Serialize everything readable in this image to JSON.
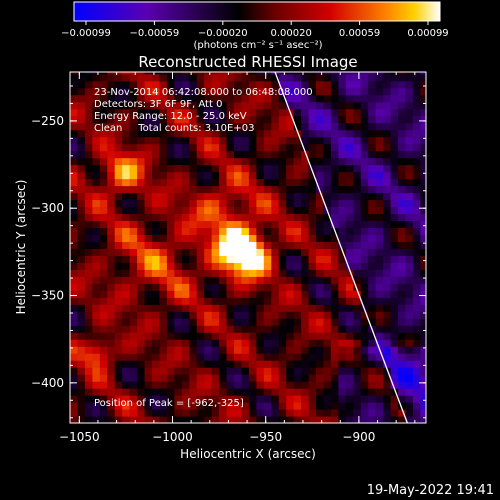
{
  "chart_data": {
    "type": "heatmap",
    "title": "Reconstructed RHESSI Image",
    "xlabel": "Heliocentric X (arcsec)",
    "ylabel": "Heliocentric Y (arcsec)",
    "xlim": [
      -1055,
      -864
    ],
    "ylim": [
      -423,
      -222
    ],
    "x_ticks": [
      -1050,
      -1000,
      -950,
      -900
    ],
    "x_tick_labels": [
      "−1050",
      "−1000",
      "−950",
      "−900"
    ],
    "y_ticks": [
      -250,
      -300,
      -350,
      -400
    ],
    "y_tick_labels": [
      "−250",
      "−300",
      "−350",
      "−400"
    ],
    "colorbar": {
      "min": -0.00099,
      "max": 0.00099,
      "tick_labels": [
        "−0.00099",
        "−0.00059",
        "−0.00020",
        "0.00020",
        "0.00059",
        "0.00099"
      ],
      "unit_label": "(photons cm⁻² s⁻¹ asec⁻²)",
      "colors": [
        "#0000ff",
        "#5a00b0",
        "#000000",
        "#6a0000",
        "#d20000",
        "#ff8000",
        "#ffd000",
        "#ffffff"
      ]
    },
    "annotations": [
      "23-Nov-2014 06:42:08.000 to 06:48:08.000",
      "Detectors: 3F 6F 9F, Att 0",
      "Energy Range: 12.0 - 25.0 keV",
      "Clean     Total counts: 3.10E+03"
    ],
    "peak_label": "Position of Peak = [-962,-325]",
    "peak": {
      "x": -962,
      "y": -325
    },
    "grid": false
  },
  "footer_timestamp": "19-May-2022 19:41"
}
